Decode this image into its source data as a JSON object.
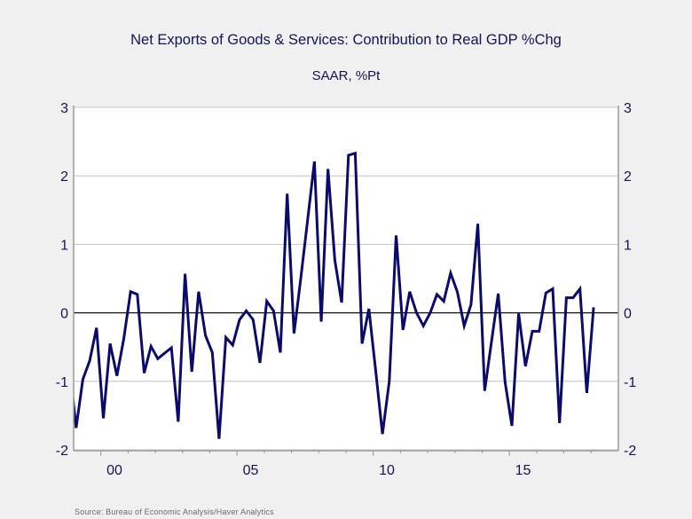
{
  "chart_data": {
    "type": "line",
    "title": "Net Exports of Goods & Services: Contribution to Real GDP %Chg",
    "subtitle": "SAAR, %Pt",
    "xlabel": "",
    "ylabel": "",
    "source": "Source:  Bureau of Economic Analysis/Haver Analytics",
    "frequency": "quarterly",
    "xlim": [
      1999.0,
      2019.0
    ],
    "ylim": [
      -2,
      3
    ],
    "yticks": [
      3,
      2,
      1,
      0,
      -1,
      -2
    ],
    "ytick_labels_left": [
      "3",
      "2",
      "1",
      "0",
      "-1",
      "-2"
    ],
    "ytick_labels_right": [
      "3",
      "2",
      "1",
      "0",
      "-1",
      "-2"
    ],
    "xticks_major": [
      {
        "year": 2000,
        "label": "00"
      },
      {
        "year": 2005,
        "label": "05"
      },
      {
        "year": 2010,
        "label": "10"
      },
      {
        "year": 2015,
        "label": "15"
      }
    ],
    "xticks_minor_years": [
      2000,
      2001,
      2002,
      2003,
      2004,
      2005,
      2006,
      2007,
      2008,
      2009,
      2010,
      2011,
      2012,
      2013,
      2014,
      2015,
      2016,
      2017,
      2018
    ],
    "grid": true,
    "zero_line": true,
    "legend": "none",
    "colors": {
      "line": "#0b0b6b",
      "zero_line": "#111111",
      "grid": "#c4c4c4",
      "frame": "#9a9a9a",
      "text": "#141454",
      "plot_bg": "#ffffff",
      "page_bg": "#f0f0f0"
    },
    "series": [
      {
        "name": "Net Exports contribution to Real GDP %Chg",
        "start": "1999Q2",
        "x": [
          "1999Q2",
          "1999Q3",
          "1999Q4",
          "2000Q1",
          "2000Q2",
          "2000Q3",
          "2000Q4",
          "2001Q1",
          "2001Q2",
          "2001Q3",
          "2001Q4",
          "2002Q1",
          "2002Q2",
          "2002Q3",
          "2002Q4",
          "2003Q1",
          "2003Q2",
          "2003Q3",
          "2003Q4",
          "2004Q1",
          "2004Q2",
          "2004Q3",
          "2004Q4",
          "2005Q1",
          "2005Q2",
          "2005Q3",
          "2005Q4",
          "2006Q1",
          "2006Q2",
          "2006Q3",
          "2006Q4",
          "2007Q1",
          "2007Q2",
          "2007Q3",
          "2007Q4",
          "2008Q1",
          "2008Q2",
          "2008Q3",
          "2008Q4",
          "2009Q1",
          "2009Q2",
          "2009Q3",
          "2009Q4",
          "2010Q1",
          "2010Q2",
          "2010Q3",
          "2010Q4",
          "2011Q1",
          "2011Q2",
          "2011Q3",
          "2011Q4",
          "2012Q1",
          "2012Q2",
          "2012Q3",
          "2012Q4",
          "2013Q1",
          "2013Q2",
          "2013Q3",
          "2013Q4",
          "2014Q1",
          "2014Q2",
          "2014Q3",
          "2014Q4",
          "2015Q1",
          "2015Q2",
          "2015Q3",
          "2015Q4",
          "2016Q1",
          "2016Q2",
          "2016Q3",
          "2016Q4",
          "2017Q1",
          "2017Q2",
          "2017Q3",
          "2017Q4",
          "2018Q1",
          "2018Q2"
        ],
        "values": [
          -1.68,
          -0.97,
          -0.7,
          -0.22,
          -1.54,
          -0.45,
          -0.92,
          -0.38,
          0.31,
          0.27,
          -0.88,
          -0.49,
          -0.67,
          -0.59,
          -0.51,
          -1.59,
          0.57,
          -0.86,
          0.31,
          -0.33,
          -0.58,
          -1.84,
          -0.36,
          -0.47,
          -0.1,
          0.03,
          -0.1,
          -0.73,
          0.17,
          0.03,
          -0.58,
          1.74,
          -0.3,
          0.5,
          1.35,
          2.21,
          -0.13,
          2.1,
          0.77,
          0.15,
          2.3,
          2.33,
          -0.45,
          0.06,
          -0.85,
          -1.77,
          -1.0,
          1.13,
          -0.25,
          0.31,
          0.0,
          -0.19,
          0.0,
          0.27,
          0.17,
          0.58,
          0.3,
          -0.19,
          0.12,
          1.3,
          -1.14,
          -0.43,
          0.28,
          -1.01,
          -1.65,
          -0.01,
          -0.78,
          -0.27,
          -0.27,
          0.29,
          0.35,
          -1.61,
          0.22,
          0.22,
          0.35,
          -1.17,
          0.08
        ]
      }
    ]
  }
}
